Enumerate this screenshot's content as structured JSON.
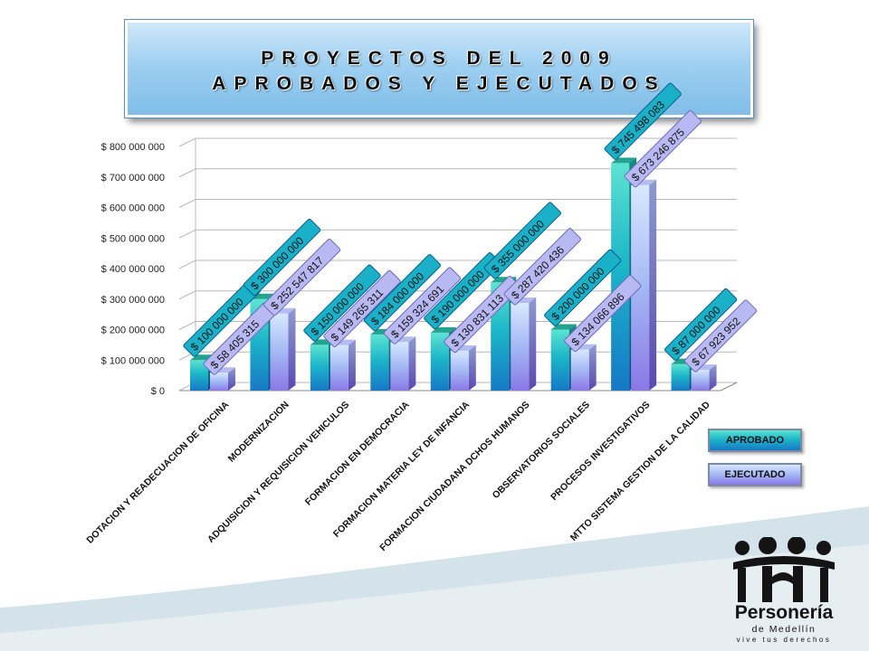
{
  "title": {
    "line1": "PROYECTOS DEL 2009",
    "line2": "APROBADOS Y EJECUTADOS"
  },
  "colors": {
    "aprobado_top": "#5de3d2",
    "aprobado_bottom": "#1678c6",
    "ejecutado_top": "#d8e8ff",
    "ejecutado_bottom": "#8a78e6",
    "label_aprobado_bg": "#1ab0c8",
    "label_ejecutado_bg": "#b8b8f2",
    "gridline": "#b8b8b8"
  },
  "chart_data": {
    "type": "bar",
    "categories": [
      "DOTACION Y READECUACION DE OFICINA",
      "MODERNIZACION",
      "ADQUISICION Y REQUISICION VEHICULOS",
      "FORMACION EN DEMOCRACIA",
      "FORMACION MATERIA LEY DE INFANCIA",
      "FORMACION CIUDADANA DCHOS HUMANOS",
      "OBSERVATORIOS SOCIALES",
      "PROCESOS INVESTIGATIVOS",
      "MTTO SISTEMA GESTION DE LA CALIDAD"
    ],
    "series": [
      {
        "name": "APROBADO",
        "values": [
          100000000,
          300000000,
          150000000,
          184000000,
          190000000,
          355000000,
          200000000,
          745498083,
          87000000
        ],
        "labels": [
          "$ 100 000 000",
          "$ 300 000 000",
          "$ 150 000 000",
          "$ 184 000 000",
          "$ 190 000 000",
          "$ 355 000 000",
          "$ 200 000 000",
          "$ 745 498 083",
          "$ 87 000 000"
        ]
      },
      {
        "name": "EJECUTADO",
        "values": [
          58405315,
          252547817,
          149265311,
          159324691,
          130831113,
          287420436,
          134066896,
          673246875,
          67923952
        ],
        "labels": [
          "$ 58 405 315",
          "$ 252 547 817",
          "$ 149 265 311",
          "$ 159 324 691",
          "$ 130 831 113",
          "$ 287 420 436",
          "$ 134 066 896",
          "$ 673 246 875",
          "$ 67 923 952"
        ]
      }
    ],
    "ylim": [
      0,
      800000000
    ],
    "yticks": [
      0,
      100000000,
      200000000,
      300000000,
      400000000,
      500000000,
      600000000,
      700000000,
      800000000
    ],
    "ytick_labels": [
      "$ 0",
      "$ 100 000 000",
      "$ 200 000 000",
      "$ 300 000 000",
      "$ 400 000 000",
      "$ 500 000 000",
      "$ 600 000 000",
      "$ 700 000 000",
      "$ 800 000 000"
    ],
    "grid": true,
    "legend_position": "right",
    "style": "3d-clustered-column"
  },
  "logo": {
    "name": "Personería",
    "subtitle": "de Medellín",
    "tagline": "vive tus derechos"
  }
}
